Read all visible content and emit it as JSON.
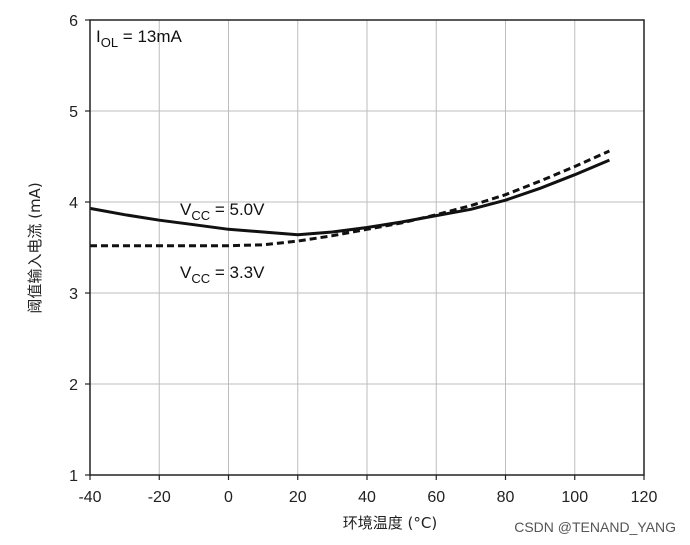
{
  "chart_data": {
    "type": "line",
    "title": "",
    "xlabel": "环境温度 (°C)",
    "ylabel": "阈值输入电流 (mA)",
    "xlim": [
      -40,
      120
    ],
    "ylim": [
      1,
      6
    ],
    "xticks": [
      -40,
      -20,
      0,
      20,
      40,
      60,
      80,
      100,
      120
    ],
    "yticks": [
      1,
      2,
      3,
      4,
      5,
      6
    ],
    "grid": true,
    "legend": "none",
    "series": [
      {
        "name": "VCC = 5.0V",
        "label_main": "V",
        "label_sub": "CC",
        "label_rest": " = 5.0V",
        "style": "solid",
        "color": "#111111",
        "x": [
          -40,
          -30,
          -20,
          -10,
          0,
          10,
          20,
          30,
          40,
          50,
          60,
          70,
          80,
          90,
          100,
          110
        ],
        "y": [
          3.93,
          3.86,
          3.8,
          3.75,
          3.7,
          3.67,
          3.64,
          3.67,
          3.72,
          3.78,
          3.85,
          3.92,
          4.02,
          4.15,
          4.3,
          4.46
        ]
      },
      {
        "name": "VCC = 3.3V",
        "label_main": "V",
        "label_sub": "CC",
        "label_rest": " = 3.3V",
        "style": "dashed",
        "color": "#111111",
        "x": [
          -40,
          -30,
          -20,
          -10,
          0,
          10,
          20,
          30,
          40,
          50,
          60,
          70,
          80,
          90,
          100,
          110
        ],
        "y": [
          3.52,
          3.52,
          3.52,
          3.52,
          3.52,
          3.53,
          3.57,
          3.63,
          3.7,
          3.77,
          3.86,
          3.96,
          4.08,
          4.23,
          4.39,
          4.56
        ]
      }
    ],
    "annotation": {
      "main": "I",
      "sub": "OL",
      "rest": " = 13mA"
    }
  },
  "watermark": "CSDN @TENAND_YANG"
}
